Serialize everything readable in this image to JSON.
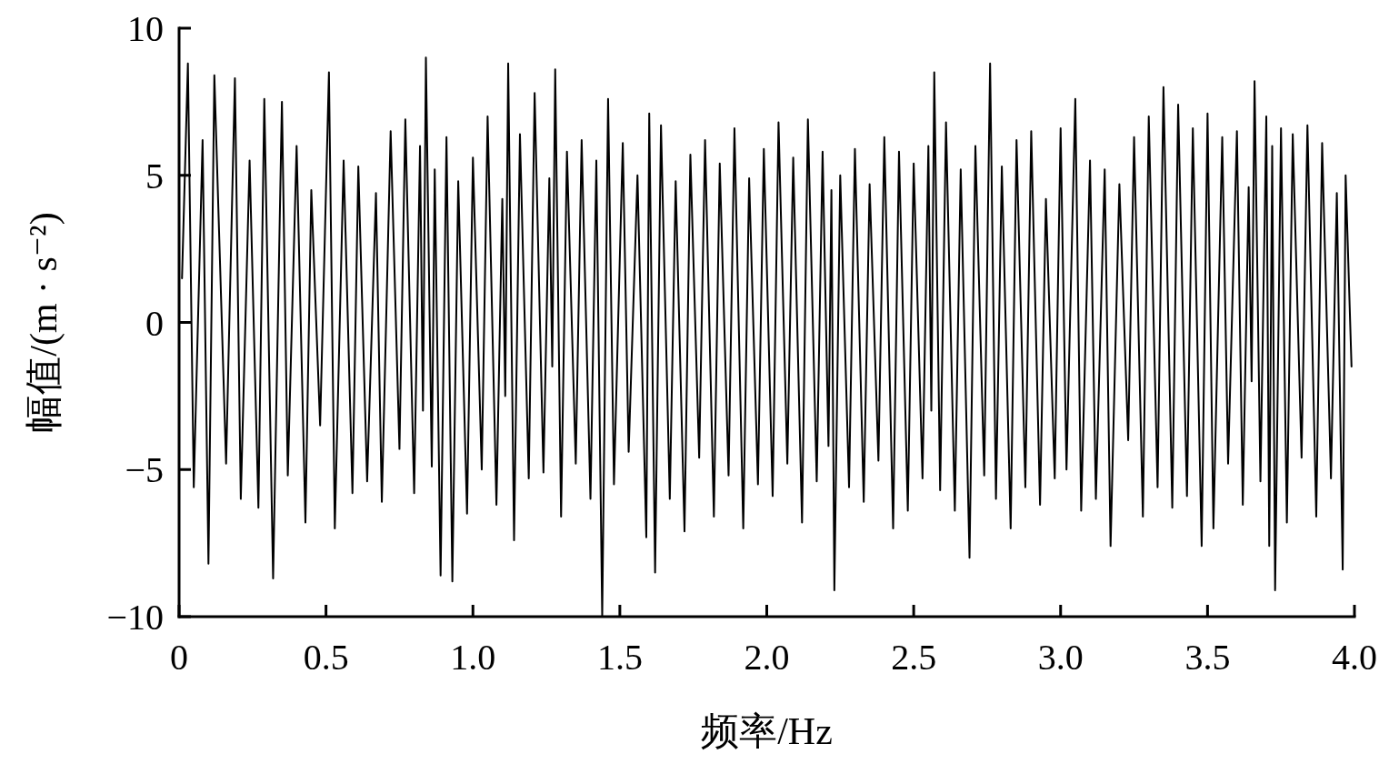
{
  "chart_data": {
    "type": "line",
    "xlabel": "频率/Hz",
    "ylabel": "幅值/(m · s⁻²)",
    "color": "#000000",
    "xlim": [
      0,
      4
    ],
    "ylim": [
      -10,
      10
    ],
    "xticks": [
      0,
      0.5,
      {
        "value": 1,
        "label": "1.0"
      },
      1.5,
      {
        "value": 2,
        "label": "2.0"
      },
      2.5,
      {
        "value": 3,
        "label": "3.0"
      },
      3.5,
      {
        "value": 4,
        "label": "4.0"
      }
    ],
    "yticks": [
      {
        "value": -10,
        "label": "−10"
      },
      {
        "value": -5,
        "label": "−5"
      },
      0,
      5,
      10
    ],
    "x": [
      0.01,
      0.03,
      0.05,
      0.08,
      0.1,
      0.12,
      0.16,
      0.19,
      0.21,
      0.24,
      0.27,
      0.29,
      0.32,
      0.35,
      0.37,
      0.4,
      0.43,
      0.45,
      0.48,
      0.51,
      0.53,
      0.56,
      0.59,
      0.61,
      0.64,
      0.67,
      0.69,
      0.72,
      0.75,
      0.77,
      0.8,
      0.82,
      0.83,
      0.84,
      0.86,
      0.87,
      0.89,
      0.91,
      0.93,
      0.95,
      0.98,
      1.0,
      1.03,
      1.05,
      1.08,
      1.1,
      1.11,
      1.12,
      1.14,
      1.16,
      1.19,
      1.21,
      1.24,
      1.26,
      1.27,
      1.28,
      1.3,
      1.32,
      1.35,
      1.37,
      1.4,
      1.42,
      1.44,
      1.46,
      1.48,
      1.51,
      1.53,
      1.56,
      1.59,
      1.6,
      1.62,
      1.64,
      1.67,
      1.69,
      1.72,
      1.74,
      1.77,
      1.79,
      1.82,
      1.84,
      1.87,
      1.89,
      1.92,
      1.94,
      1.97,
      1.99,
      2.02,
      2.04,
      2.07,
      2.09,
      2.12,
      2.14,
      2.17,
      2.19,
      2.21,
      2.22,
      2.23,
      2.25,
      2.28,
      2.3,
      2.33,
      2.35,
      2.38,
      2.4,
      2.43,
      2.45,
      2.48,
      2.5,
      2.53,
      2.55,
      2.56,
      2.57,
      2.59,
      2.61,
      2.64,
      2.66,
      2.69,
      2.71,
      2.74,
      2.76,
      2.78,
      2.8,
      2.83,
      2.85,
      2.88,
      2.9,
      2.93,
      2.95,
      2.98,
      3.0,
      3.02,
      3.05,
      3.07,
      3.1,
      3.12,
      3.15,
      3.17,
      3.2,
      3.23,
      3.25,
      3.28,
      3.3,
      3.33,
      3.35,
      3.38,
      3.4,
      3.43,
      3.45,
      3.48,
      3.5,
      3.52,
      3.55,
      3.57,
      3.6,
      3.62,
      3.64,
      3.65,
      3.66,
      3.68,
      3.7,
      3.71,
      3.72,
      3.73,
      3.75,
      3.77,
      3.79,
      3.82,
      3.84,
      3.87,
      3.89,
      3.92,
      3.94,
      3.96,
      3.97,
      3.99
    ],
    "values": [
      1.5,
      8.8,
      -5.6,
      6.2,
      -8.2,
      8.4,
      -4.8,
      8.3,
      -6.0,
      5.5,
      -6.3,
      7.6,
      -8.7,
      7.5,
      -5.2,
      6.0,
      -6.8,
      4.5,
      -3.5,
      8.5,
      -7.0,
      5.5,
      -5.8,
      5.3,
      -5.4,
      4.4,
      -6.1,
      6.5,
      -4.3,
      6.9,
      -5.8,
      6.0,
      -3.0,
      9.0,
      -4.9,
      5.2,
      -8.6,
      6.3,
      -8.8,
      4.8,
      -6.5,
      5.6,
      -5.0,
      7.0,
      -6.2,
      4.2,
      -2.5,
      8.8,
      -7.4,
      6.4,
      -5.3,
      7.8,
      -5.1,
      4.9,
      -1.5,
      8.6,
      -6.6,
      5.8,
      -4.8,
      6.2,
      -6.0,
      5.5,
      -10,
      7.6,
      -5.5,
      6.1,
      -4.4,
      5.0,
      -7.3,
      7.1,
      -8.5,
      6.7,
      -6.0,
      4.8,
      -7.1,
      5.7,
      -4.6,
      6.2,
      -6.6,
      5.4,
      -5.2,
      6.6,
      -7.0,
      4.9,
      -5.5,
      5.9,
      -5.9,
      6.8,
      -4.8,
      5.6,
      -6.8,
      6.9,
      -5.4,
      5.8,
      -4.2,
      4.5,
      -9.1,
      5.0,
      -5.6,
      5.9,
      -6.1,
      4.7,
      -4.7,
      6.3,
      -7.0,
      5.8,
      -6.4,
      5.4,
      -5.3,
      6.0,
      -3.0,
      8.5,
      -5.7,
      6.8,
      -6.4,
      5.2,
      -8.0,
      6.0,
      -5.2,
      8.8,
      -6.0,
      5.3,
      -7.0,
      6.2,
      -5.6,
      6.5,
      -6.2,
      4.2,
      -5.3,
      6.6,
      -5.0,
      7.6,
      -6.4,
      5.5,
      -6.0,
      5.2,
      -7.6,
      4.7,
      -4.0,
      6.3,
      -6.6,
      7.0,
      -5.6,
      8.0,
      -6.3,
      7.4,
      -5.9,
      6.6,
      -7.6,
      7.1,
      -7.0,
      6.3,
      -4.8,
      6.5,
      -6.2,
      4.6,
      -2.0,
      8.2,
      -5.4,
      7.0,
      -7.6,
      6.0,
      -9.1,
      6.6,
      -6.8,
      6.4,
      -4.6,
      6.7,
      -6.6,
      6.1,
      -5.3,
      4.4,
      -8.4,
      5.0,
      -1.5
    ]
  }
}
